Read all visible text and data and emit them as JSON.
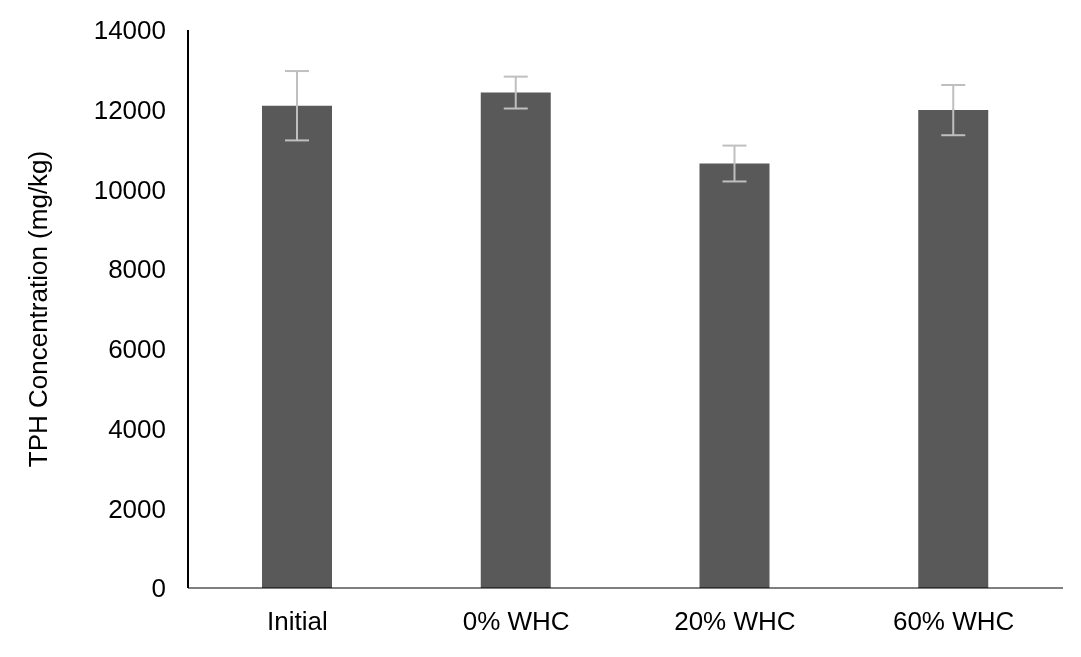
{
  "chart_data": {
    "type": "bar",
    "ylabel": "TPH Concentration (mg/kg)",
    "categories": [
      "Initial",
      "0% WHC",
      "20% WHC",
      "60% WHC"
    ],
    "series": [
      {
        "color": "#595959",
        "values": [
          12100,
          12430,
          10650,
          11990
        ],
        "errors": [
          870,
          400,
          450,
          630
        ]
      }
    ],
    "ylim": [
      0,
      14000
    ],
    "yticks": [
      0,
      2000,
      4000,
      6000,
      8000,
      10000,
      12000,
      14000
    ],
    "grid": false,
    "legend": false
  }
}
